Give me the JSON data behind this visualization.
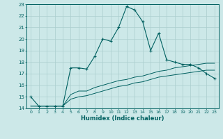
{
  "title": "",
  "xlabel": "Humidex (Indice chaleur)",
  "x": [
    0,
    1,
    2,
    3,
    4,
    5,
    6,
    7,
    8,
    9,
    10,
    11,
    12,
    13,
    14,
    15,
    16,
    17,
    18,
    19,
    20,
    21,
    22,
    23
  ],
  "line1": [
    15.0,
    14.2,
    14.2,
    14.2,
    14.2,
    17.5,
    17.5,
    17.4,
    18.5,
    20.0,
    19.8,
    21.0,
    22.8,
    22.5,
    21.5,
    19.0,
    20.5,
    18.2,
    18.0,
    17.8,
    17.8,
    17.5,
    17.0,
    16.6
  ],
  "line2": [
    14.2,
    14.2,
    14.2,
    14.2,
    14.2,
    15.2,
    15.5,
    15.5,
    15.8,
    16.0,
    16.2,
    16.4,
    16.5,
    16.7,
    16.8,
    17.0,
    17.2,
    17.3,
    17.5,
    17.6,
    17.7,
    17.8,
    17.9,
    17.9
  ],
  "line3": [
    14.2,
    14.2,
    14.2,
    14.2,
    14.2,
    14.8,
    15.0,
    15.1,
    15.3,
    15.5,
    15.7,
    15.9,
    16.0,
    16.2,
    16.3,
    16.5,
    16.7,
    16.8,
    16.9,
    17.0,
    17.1,
    17.2,
    17.3,
    17.3
  ],
  "line_color": "#006060",
  "bg_color": "#cce8e8",
  "grid_color": "#aacece",
  "ylim": [
    14,
    23
  ],
  "xlim": [
    -0.5,
    23.5
  ],
  "yticks": [
    14,
    15,
    16,
    17,
    18,
    19,
    20,
    21,
    22,
    23
  ],
  "xticks": [
    0,
    1,
    2,
    3,
    4,
    5,
    6,
    7,
    8,
    9,
    10,
    11,
    12,
    13,
    14,
    15,
    16,
    17,
    18,
    19,
    20,
    21,
    22,
    23
  ]
}
